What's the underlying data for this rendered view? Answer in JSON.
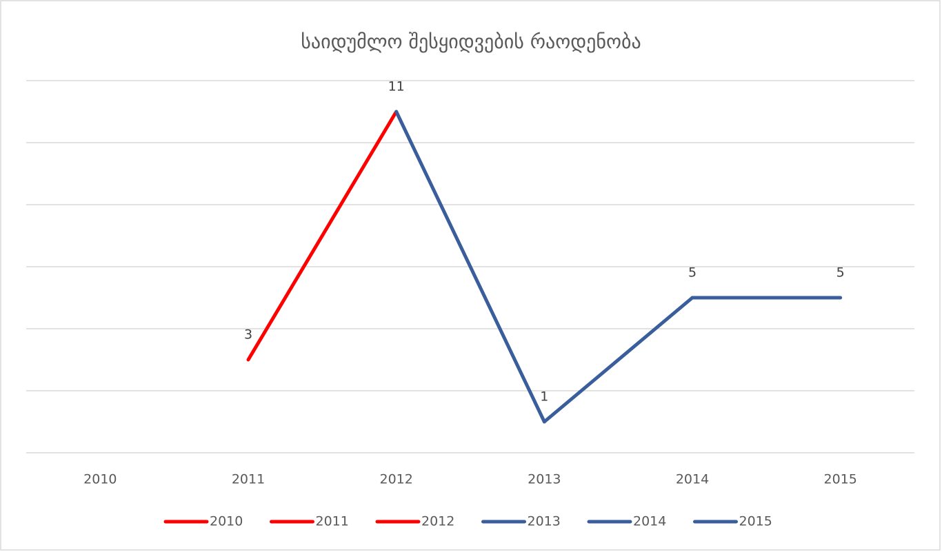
{
  "chart_data": {
    "type": "line",
    "title": "საიდუმლო შესყიდვების რაოდენობა",
    "categories": [
      "2010",
      "2011",
      "2012",
      "2013",
      "2014",
      "2015"
    ],
    "values": [
      null,
      3,
      11,
      1,
      5,
      5
    ],
    "point_colors": [
      "#ff0000",
      "#ff0000",
      "#ff0000",
      "#3a5e9c",
      "#3a5e9c",
      "#3a5e9c"
    ],
    "ylim": [
      0,
      12
    ],
    "yticks": [
      0,
      2,
      4,
      6,
      8,
      10,
      12
    ],
    "show_ytick_labels": false,
    "grid": true,
    "data_labels": true,
    "legend": "bottom"
  }
}
